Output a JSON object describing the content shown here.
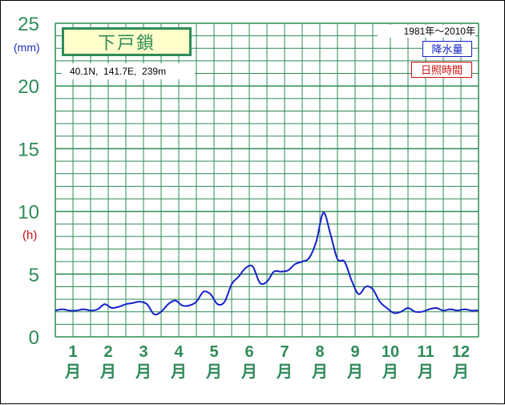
{
  "station": {
    "name": "下戸鎖",
    "location": "40.1N,  141.7E,  239m"
  },
  "period": "1981年～2010年",
  "legend": {
    "precipitation": "降水量",
    "sunshine": "日照時間"
  },
  "units": {
    "mm": "(mm)",
    "h": "(h)"
  },
  "colors": {
    "grid": "#2e8b57",
    "precipitation": "#1420c8",
    "sunshine": "#d01010",
    "title_box_fill": "#ffffcc"
  },
  "chart_data": {
    "type": "line",
    "ylim": [
      0,
      25
    ],
    "yticks": [
      "0",
      "5",
      "10",
      "15",
      "20",
      "25"
    ],
    "months": [
      {
        "num": "1",
        "label": "月"
      },
      {
        "num": "2",
        "label": "月"
      },
      {
        "num": "3",
        "label": "月"
      },
      {
        "num": "4",
        "label": "月"
      },
      {
        "num": "5",
        "label": "月"
      },
      {
        "num": "6",
        "label": "月"
      },
      {
        "num": "7",
        "label": "月"
      },
      {
        "num": "8",
        "label": "月"
      },
      {
        "num": "9",
        "label": "月"
      },
      {
        "num": "10",
        "label": "月"
      },
      {
        "num": "11",
        "label": "月"
      },
      {
        "num": "12",
        "label": "月"
      }
    ],
    "series": [
      {
        "name": "降水量",
        "x": [
          0.0,
          0.2,
          0.4,
          0.6,
          0.8,
          1.0,
          1.2,
          1.4,
          1.6,
          1.8,
          2.0,
          2.2,
          2.4,
          2.6,
          2.8,
          3.0,
          3.2,
          3.4,
          3.6,
          3.8,
          4.0,
          4.2,
          4.4,
          4.6,
          4.8,
          5.0,
          5.2,
          5.4,
          5.6,
          5.8,
          6.0,
          6.2,
          6.4,
          6.6,
          6.8,
          7.0,
          7.2,
          7.4,
          7.6,
          7.8,
          8.0,
          8.2,
          8.4,
          8.6,
          8.8,
          9.0,
          9.2,
          9.4,
          9.6,
          9.8,
          10.0,
          10.2,
          10.4,
          10.6,
          10.8,
          11.0,
          11.2,
          11.4,
          11.6,
          11.8,
          12.0
        ],
        "values": [
          2.1,
          2.2,
          2.1,
          2.1,
          2.2,
          2.1,
          2.2,
          2.6,
          2.3,
          2.4,
          2.6,
          2.7,
          2.8,
          2.6,
          1.8,
          2.0,
          2.6,
          2.9,
          2.5,
          2.5,
          2.8,
          3.6,
          3.4,
          2.6,
          2.8,
          4.2,
          4.8,
          5.5,
          5.6,
          4.3,
          4.4,
          5.2,
          5.2,
          5.3,
          5.8,
          6.0,
          6.3,
          7.6,
          9.9,
          8.2,
          6.2,
          6.0,
          4.5,
          3.4,
          4.0,
          3.8,
          2.8,
          2.3,
          1.9,
          2.0,
          2.3,
          2.0,
          2.0,
          2.2,
          2.3,
          2.1,
          2.2,
          2.1,
          2.2,
          2.1,
          2.1
        ]
      }
    ]
  }
}
